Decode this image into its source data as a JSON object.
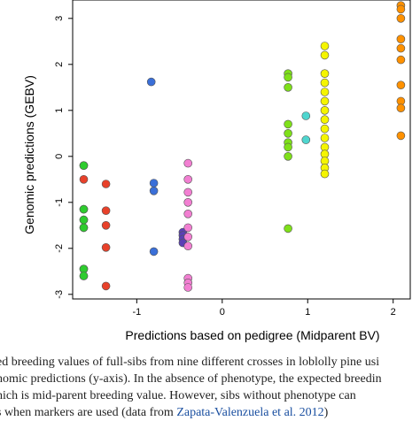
{
  "chart_data": {
    "type": "scatter",
    "title": "",
    "xlabel": "Predictions based on pedigree (Midparent BV)",
    "ylabel": "Genomic predictions (GEBV)",
    "xlim": [
      -1.75,
      2.2
    ],
    "ylim": [
      -3.1,
      3.4
    ],
    "xticks": [
      -1,
      0,
      1,
      2
    ],
    "yticks": [
      -3,
      -2,
      -1,
      0,
      1,
      2,
      3
    ],
    "grid": false,
    "legend": "none",
    "series": [
      {
        "color": "#e8412a",
        "points": [
          [
            -1.62,
            -2.45
          ],
          [
            -1.62,
            -2.6
          ],
          [
            -1.62,
            -1.55
          ],
          [
            -1.62,
            -1.38
          ],
          [
            -1.62,
            -1.15
          ],
          [
            -1.62,
            -0.5
          ],
          [
            -1.62,
            -0.2
          ],
          [
            -1.36,
            -0.6
          ],
          [
            -1.36,
            -1.18
          ],
          [
            -1.36,
            -1.5
          ],
          [
            -1.36,
            -1.98
          ],
          [
            -1.36,
            -2.82
          ]
        ]
      },
      {
        "color": "#2ecc2e",
        "points": [
          [
            -1.62,
            -2.45
          ],
          [
            -1.62,
            -2.6
          ],
          [
            -1.62,
            -1.55
          ],
          [
            -1.62,
            -1.38
          ],
          [
            -1.62,
            -1.15
          ],
          [
            -1.62,
            -0.2
          ]
        ]
      },
      {
        "color": "#3a6fd8",
        "points": [
          [
            -0.83,
            1.62
          ],
          [
            -0.8,
            -0.58
          ],
          [
            -0.8,
            -0.75
          ],
          [
            -0.8,
            -2.07
          ]
        ]
      },
      {
        "color": "#5a3fb5",
        "points": [
          [
            -0.46,
            -1.65
          ],
          [
            -0.46,
            -1.72
          ],
          [
            -0.46,
            -1.8
          ],
          [
            -0.46,
            -1.88
          ]
        ]
      },
      {
        "color": "#f27fd2",
        "points": [
          [
            -0.4,
            -0.15
          ],
          [
            -0.4,
            -0.5
          ],
          [
            -0.4,
            -0.78
          ],
          [
            -0.4,
            -1.0
          ],
          [
            -0.4,
            -1.25
          ],
          [
            -0.4,
            -1.55
          ],
          [
            -0.4,
            -1.75
          ],
          [
            -0.4,
            -1.95
          ],
          [
            -0.4,
            -2.65
          ],
          [
            -0.4,
            -2.75
          ],
          [
            -0.4,
            -2.85
          ]
        ]
      },
      {
        "color": "#7fe01a",
        "points": [
          [
            0.77,
            1.8
          ],
          [
            0.77,
            1.72
          ],
          [
            0.77,
            1.5
          ],
          [
            0.77,
            0.7
          ],
          [
            0.77,
            0.5
          ],
          [
            0.77,
            0.3
          ],
          [
            0.77,
            0.2
          ],
          [
            0.77,
            0.0
          ],
          [
            0.77,
            -1.57
          ]
        ]
      },
      {
        "color": "#4fd6cf",
        "points": [
          [
            0.98,
            0.88
          ],
          [
            0.98,
            0.36
          ]
        ]
      },
      {
        "color": "#f5f500",
        "points": [
          [
            1.2,
            2.4
          ],
          [
            1.2,
            2.2
          ],
          [
            1.2,
            1.8
          ],
          [
            1.2,
            1.6
          ],
          [
            1.2,
            1.4
          ],
          [
            1.2,
            1.2
          ],
          [
            1.2,
            1.0
          ],
          [
            1.2,
            0.8
          ],
          [
            1.2,
            0.6
          ],
          [
            1.2,
            0.4
          ],
          [
            1.2,
            0.2
          ],
          [
            1.2,
            0.05
          ],
          [
            1.2,
            -0.1
          ],
          [
            1.2,
            -0.25
          ],
          [
            1.2,
            -0.38
          ]
        ]
      },
      {
        "color": "#ff9100",
        "points": [
          [
            2.09,
            3.28
          ],
          [
            2.09,
            3.2
          ],
          [
            2.09,
            3.0
          ],
          [
            2.09,
            2.55
          ],
          [
            2.09,
            2.35
          ],
          [
            2.09,
            2.1
          ],
          [
            2.09,
            1.55
          ],
          [
            2.09,
            1.2
          ],
          [
            2.09,
            1.05
          ],
          [
            2.09,
            0.45
          ]
        ]
      }
    ]
  },
  "caption": {
    "line1": "ed breeding values of full-sibs from nine different crosses in loblolly pine usi",
    "line2": "nomic predictions (y-axis). In the absence of phenotype, the expected breedin",
    "line3": "hich is mid-parent breeding value. However, sibs without phenotype can",
    "line4_pre": "s when markers are used (data from ",
    "line4_link": "Zapata-Valenzuela et al. 2012",
    "line4_post": ")"
  }
}
